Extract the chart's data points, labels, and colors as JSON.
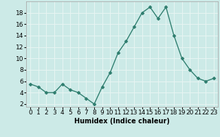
{
  "x": [
    0,
    1,
    2,
    3,
    4,
    5,
    6,
    7,
    8,
    9,
    10,
    11,
    12,
    13,
    14,
    15,
    16,
    17,
    18,
    19,
    20,
    21,
    22,
    23
  ],
  "y": [
    5.5,
    5.0,
    4.0,
    4.0,
    5.5,
    4.5,
    4.0,
    3.0,
    2.0,
    5.0,
    7.5,
    11.0,
    13.0,
    15.5,
    18.0,
    19.0,
    17.0,
    19.0,
    14.0,
    10.0,
    8.0,
    6.5,
    6.0,
    6.5
  ],
  "line_color": "#2e7d6e",
  "marker": "D",
  "markersize": 2.5,
  "linewidth": 1.0,
  "xlabel": "Humidex (Indice chaleur)",
  "xlabel_fontsize": 7,
  "bg_color": "#cceae7",
  "grid_color": "#e8f5f3",
  "xlim": [
    -0.5,
    23.5
  ],
  "ylim": [
    1.5,
    20
  ],
  "yticks": [
    2,
    4,
    6,
    8,
    10,
    12,
    14,
    16,
    18
  ],
  "xtick_labels": [
    "0",
    "1",
    "2",
    "3",
    "4",
    "5",
    "6",
    "7",
    "8",
    "9",
    "10",
    "11",
    "12",
    "13",
    "14",
    "15",
    "16",
    "17",
    "18",
    "19",
    "20",
    "21",
    "22",
    "23"
  ],
  "tick_fontsize": 6.5
}
